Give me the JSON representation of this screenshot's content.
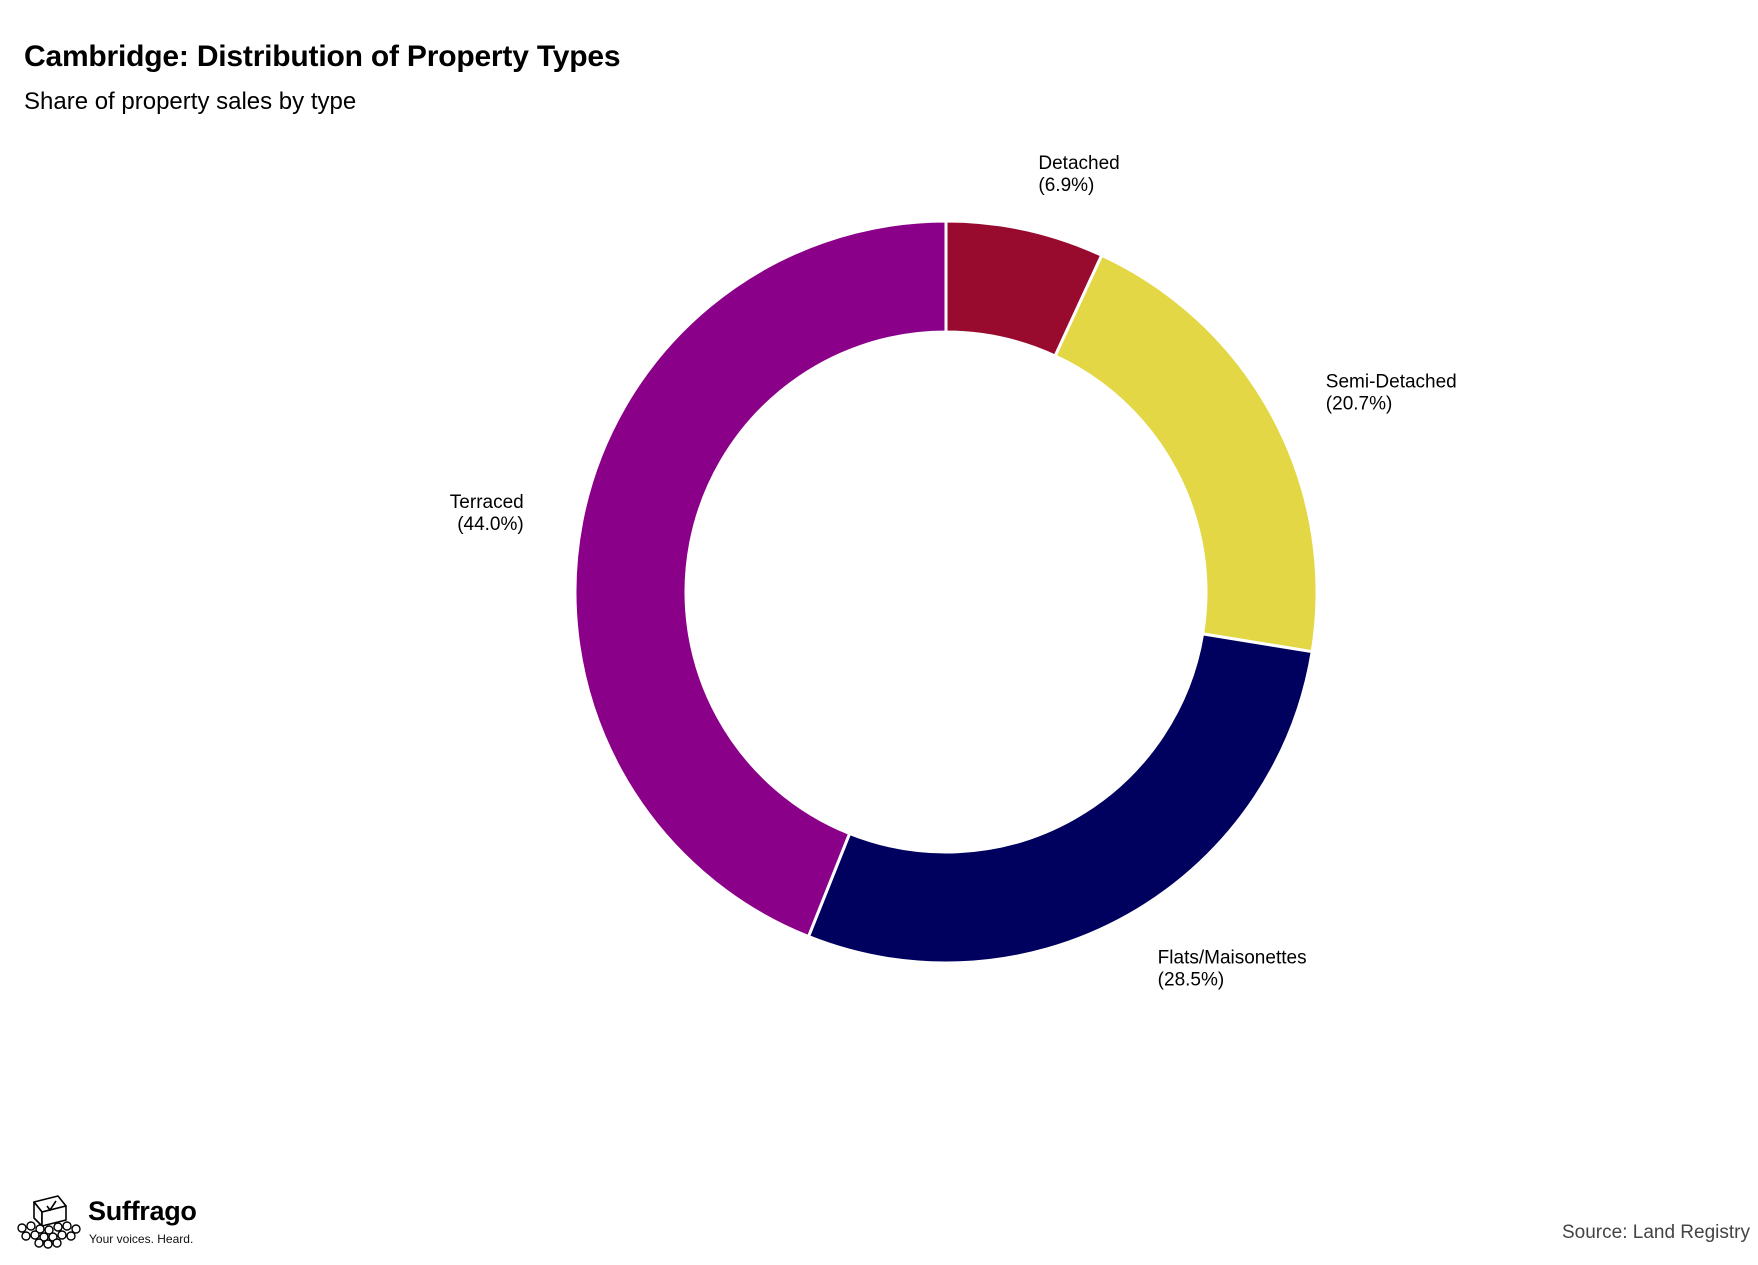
{
  "chart_data": {
    "type": "pie",
    "title": "Cambridge: Distribution of Property Types",
    "subtitle": "Share of property sales by type",
    "slices": [
      {
        "label": "Detached",
        "value": 6.9,
        "value_label": "(6.9%)",
        "color": "#990a2f"
      },
      {
        "label": "Semi-Detached",
        "value": 20.7,
        "value_label": "(20.7%)",
        "color": "#e3d745"
      },
      {
        "label": "Flats/Maisonettes",
        "value": 28.5,
        "value_label": "(28.5%)",
        "color": "#00005e"
      },
      {
        "label": "Terraced",
        "value": 44.0,
        "value_label": "(44.0%)",
        "color": "#8b0088"
      }
    ],
    "donut": true,
    "start_angle": "12 o'clock",
    "direction": "clockwise",
    "legend": "none"
  },
  "branding": {
    "name": "Suffrago",
    "tagline": "Your voices. Heard.",
    "logo_icon": "ballot-box-crowd-icon"
  },
  "source": "Source: Land Registry"
}
